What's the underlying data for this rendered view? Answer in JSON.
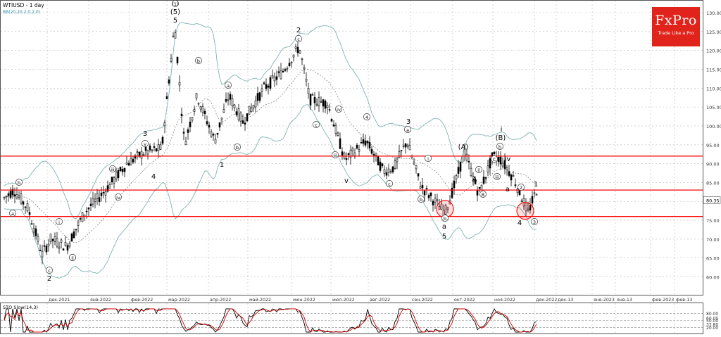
{
  "header": {
    "symbol_title": "WTIUSD - 1 day",
    "indicator": "BB(20,20,2,0,2,0)",
    "sto_title": "STO Slow(14,3)"
  },
  "logo": {
    "brand": "FxPro",
    "tagline": "Trade Like a Pro"
  },
  "chart_data": {
    "type": "candlestick",
    "instrument": "WTIUSD",
    "timeframe": "1 day",
    "price_ticks": [
      "130.00",
      "125.00",
      "120.00",
      "115.00",
      "110.00",
      "105.00",
      "100.00",
      "95.00",
      "90.00",
      "85.00",
      "80.00",
      "75.00",
      "70.00",
      "65.00",
      "60.00"
    ],
    "current_price": "80.35",
    "x_ticks": [
      "дек-2021",
      "янв-2022",
      "фев-2022",
      "мар-2022",
      "апр-2022",
      "май-2022",
      "июн-2022",
      "июл-2022",
      "авг-2022",
      "сен-2022",
      "окт-2022",
      "ноя-2022",
      "дек-2022",
      "дек-13",
      "янв-2023",
      "янв-13",
      "фев-2023",
      "фев-13"
    ],
    "horizontal_levels": [
      92,
      83,
      76
    ],
    "colors": {
      "levels": "#ff0000",
      "bollinger": "#7fb3b3",
      "sto_k": "#000000",
      "sto_d": "#cc0000",
      "candles": "#000000",
      "grid": "#bbbbbb"
    },
    "wave_labels": [
      "2",
      "(1)",
      "(5)",
      "5",
      "4",
      "3",
      "ii",
      "b",
      "a",
      "1",
      "c",
      "b",
      "a",
      "v",
      "iv",
      "iii",
      "2",
      "c",
      "b",
      "i",
      "ii",
      "iii",
      "iv",
      "v",
      "3",
      "4",
      "a",
      "c",
      "b",
      "a",
      "5",
      "(A)",
      "A",
      "B",
      "ii",
      "i",
      "(B)",
      "C",
      "iii",
      "iv",
      "2",
      "a",
      "1",
      "4",
      "3",
      "b",
      "c",
      "i",
      "b",
      "v"
    ],
    "sto": {
      "ticks": [
        "80.00",
        "60.00",
        "50.00",
        "33.80",
        "20.00"
      ],
      "levels": [
        80,
        50,
        20
      ]
    }
  }
}
